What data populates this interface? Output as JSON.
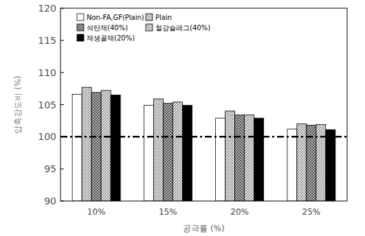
{
  "chart_data": {
    "type": "bar",
    "x_label": "공극률 (%)",
    "y_label": "압축강도비 (%)",
    "categories": [
      "10%",
      "15%",
      "20%",
      "25%"
    ],
    "series": [
      {
        "name": "Non-FA,GF(Plain)",
        "color": "#ffffff",
        "values": [
          106.6,
          104.9,
          102.9,
          101.2
        ]
      },
      {
        "name": "Plain",
        "color": "#d0d0d0",
        "values": [
          107.7,
          105.9,
          104.0,
          102.0
        ]
      },
      {
        "name": "석탄재(40%)",
        "color": "#b8b8b8",
        "values": [
          106.9,
          105.2,
          103.4,
          101.8
        ]
      },
      {
        "name": "철강슬래그(40%)",
        "color": "#e0e0e0",
        "values": [
          107.2,
          105.4,
          103.4,
          101.9
        ]
      },
      {
        "name": "재생골재(20%)",
        "color": "#000000",
        "values": [
          106.5,
          104.9,
          102.9,
          101.1
        ]
      }
    ],
    "reference_line": 100,
    "ylim": [
      90,
      120
    ],
    "yticks": [
      90,
      95,
      100,
      105,
      110,
      115,
      120
    ],
    "legend": "upper left",
    "grid": false
  }
}
